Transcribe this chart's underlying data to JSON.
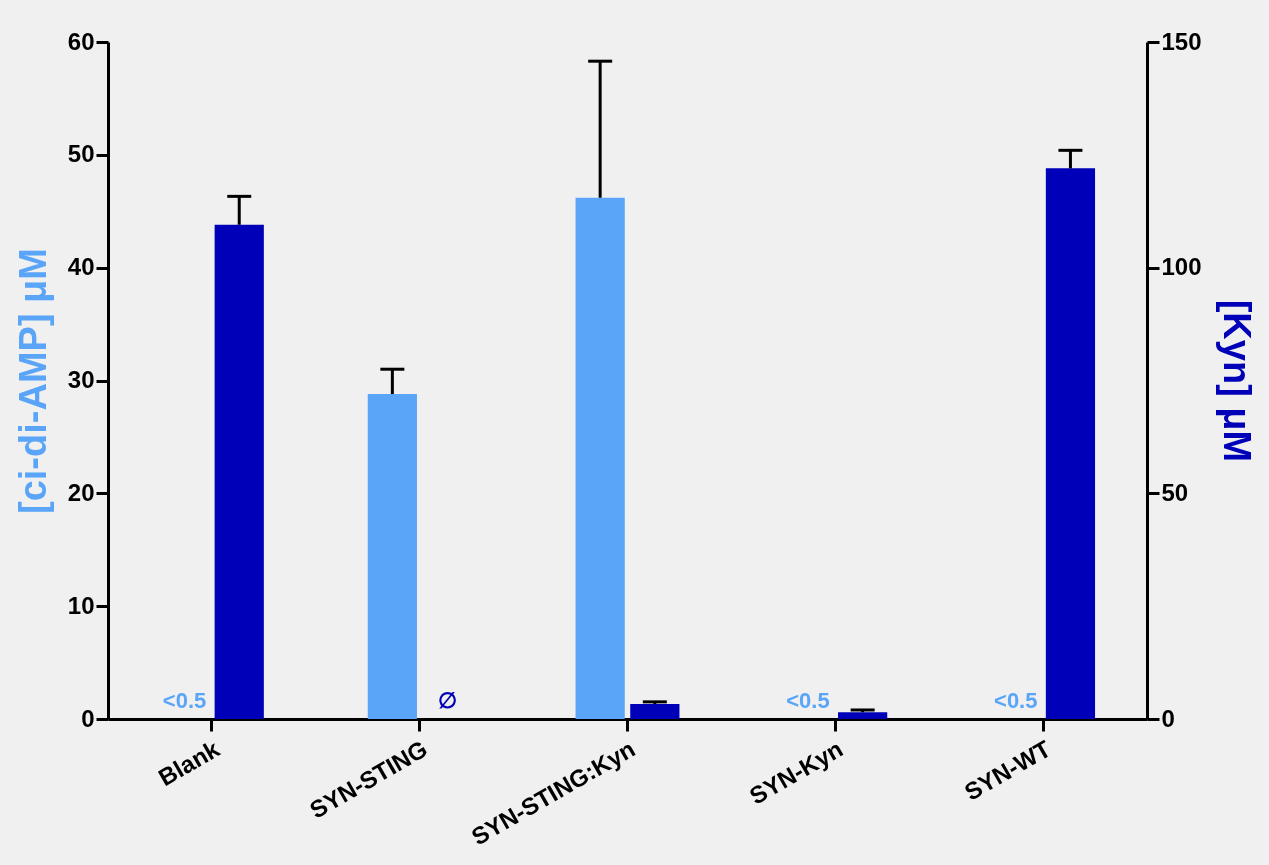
{
  "chart_data": {
    "type": "bar",
    "categories": [
      "Blank",
      "SYN-STING",
      "SYN-STING:Kyn",
      "SYN-Kyn",
      "SYN-WT"
    ],
    "ylabel": "[ci-di-AMP] μM",
    "y2label": "[Kyn] μM",
    "ylim": [
      0,
      60
    ],
    "yticks": [
      0,
      10,
      20,
      30,
      40,
      50,
      60
    ],
    "y2lim": [
      0,
      150
    ],
    "y2ticks": [
      0,
      50,
      100,
      150
    ],
    "series": [
      {
        "color": "#5aa5f8",
        "values": [
          null,
          28.8,
          46.2,
          null,
          null
        ],
        "errors": [
          null,
          [
            28.8,
            31
          ],
          [
            46.2,
            58.3
          ],
          null,
          null
        ],
        "value_labels": [
          "<0.5",
          null,
          null,
          "<0.5",
          "<0.5"
        ]
      },
      {
        "color": "#0000b8",
        "axis": "y2",
        "values": [
          109.5,
          null,
          3.3,
          1.5,
          122
        ],
        "errors": [
          [
            109.5,
            115.8
          ],
          null,
          [
            3.3,
            3.8
          ],
          [
            1.5,
            2
          ],
          [
            122,
            126
          ]
        ],
        "value_labels": [
          null,
          "∅",
          null,
          null,
          null
        ]
      }
    ],
    "grid": false,
    "legend": false
  }
}
